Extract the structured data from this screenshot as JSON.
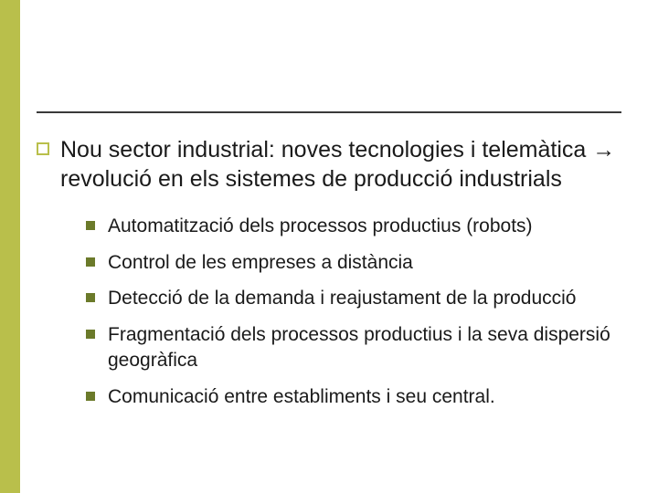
{
  "colors": {
    "left_bar": "#b9bf4b",
    "rule": "#3a3a3a",
    "main_bullet_border": "#b9bf4b",
    "sub_bullet_fill": "#6b7a2a",
    "text": "#1a1a1a",
    "background": "#ffffff"
  },
  "typography": {
    "main_fontsize": 25,
    "sub_fontsize": 21,
    "font_family": "Verdana"
  },
  "main": {
    "text": "Nou sector industrial: noves tecnologies i telemàtica → revolució en els sistemes de producció industrials"
  },
  "subs": [
    {
      "text": "Automatització dels processos productius (robots)"
    },
    {
      "text": "Control de les empreses a distància"
    },
    {
      "text": "Detecció de la demanda i reajustament de la producció"
    },
    {
      "text": "Fragmentació dels processos productius i la seva dispersió geogràfica"
    },
    {
      "text": "Comunicació entre establiments i seu central."
    }
  ]
}
